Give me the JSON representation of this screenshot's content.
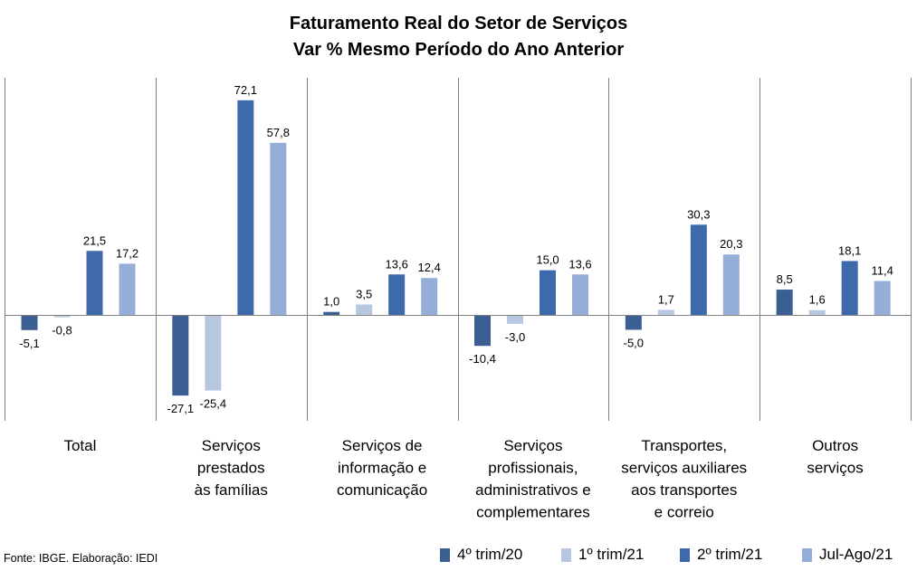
{
  "title_lines": [
    "Faturamento Real do Setor de Serviços",
    "Var % Mesmo Período do Ano Anterior"
  ],
  "source": "Fonte: IBGE. Elaboração: IEDI",
  "colors": {
    "4º trim/20": "#3b5f92",
    "1º trim/21": "#b8c7e0",
    "2º trim/21": "#3e6aab",
    "Jul-Ago/21": "#95aed7",
    "axis": "#808080"
  },
  "chart_data": {
    "type": "bar",
    "title": "Faturamento Real do Setor de Serviços",
    "subtitle": "Var % Mesmo Período do Ano Anterior",
    "categories": [
      [
        "Total"
      ],
      [
        "Serviços",
        "prestados",
        "às famílias"
      ],
      [
        "Serviços de",
        "informação e",
        "comunicação"
      ],
      [
        "Serviços",
        "profissionais,",
        "administrativos e",
        "complementares"
      ],
      [
        "Transportes,",
        "serviços auxiliares",
        "aos transportes",
        "e correio"
      ],
      [
        "Outros",
        "serviços"
      ]
    ],
    "series": [
      {
        "name": "4º trim/20",
        "values": [
          -5.1,
          -27.1,
          1.0,
          -10.4,
          -5.0,
          8.5
        ]
      },
      {
        "name": "1º trim/21",
        "values": [
          -0.8,
          -25.4,
          3.5,
          -3.0,
          1.7,
          1.6
        ]
      },
      {
        "name": "2º trim/21",
        "values": [
          21.5,
          72.1,
          13.6,
          15.0,
          30.3,
          18.1
        ]
      },
      {
        "name": "Jul-Ago/21",
        "values": [
          17.2,
          57.8,
          12.4,
          13.6,
          20.3,
          11.4
        ]
      }
    ],
    "value_labels": [
      [
        "-5,1",
        "-27,1",
        "1,0",
        "-10,4",
        "-5,0",
        "8,5"
      ],
      [
        "-0,8",
        "-25,4",
        "3,5",
        "-3,0",
        "1,7",
        "1,6"
      ],
      [
        "21,5",
        "72,1",
        "13,6",
        "15,0",
        "30,3",
        "18,1"
      ],
      [
        "17,2",
        "57,8",
        "12,4",
        "13,6",
        "20,3",
        "11,4"
      ]
    ],
    "ylim": [
      -36,
      79
    ],
    "grid": false,
    "legend_position": "bottom-right"
  }
}
